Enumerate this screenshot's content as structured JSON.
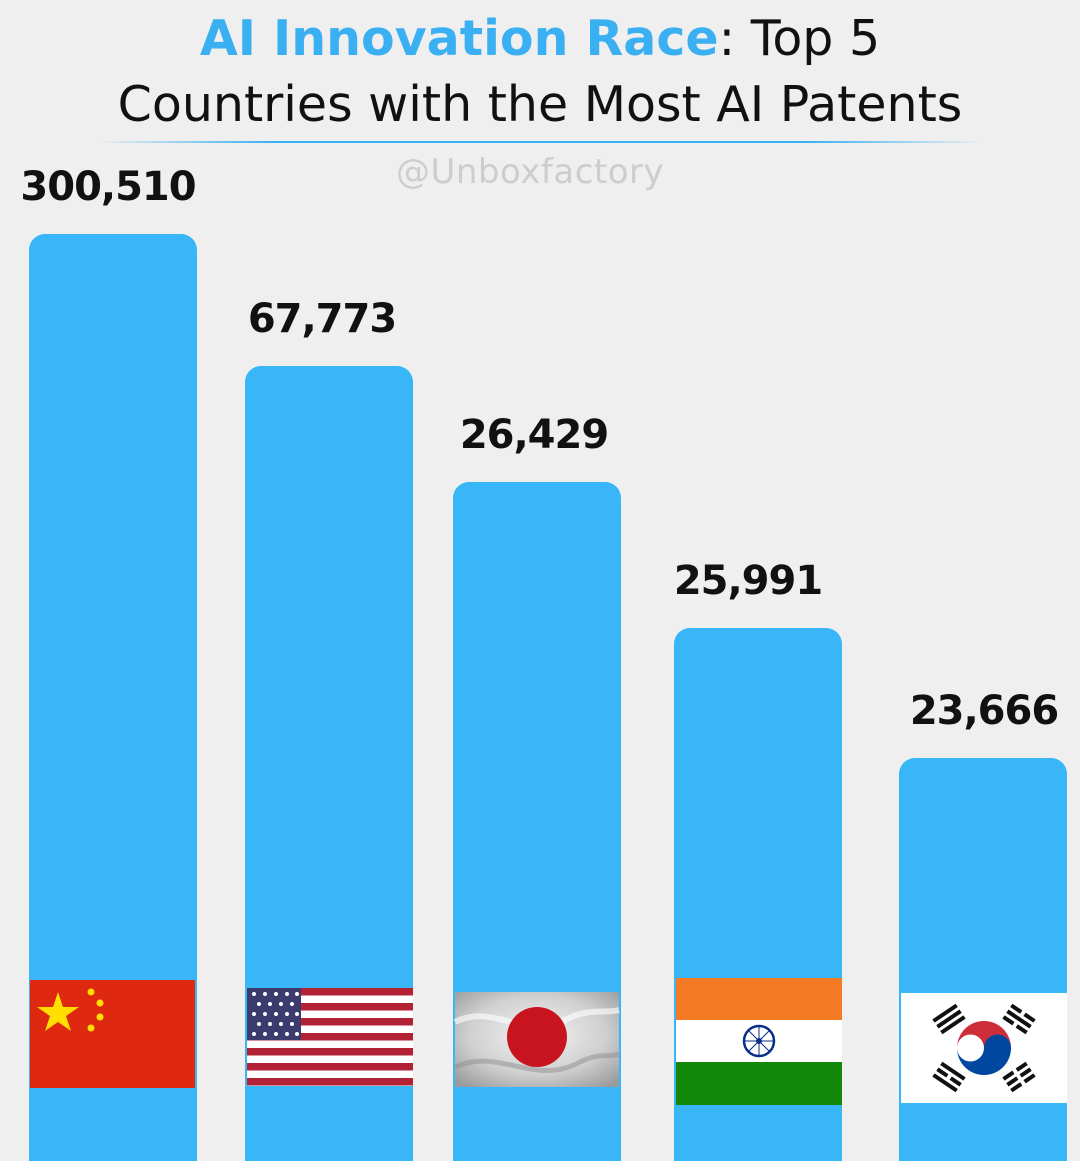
{
  "header": {
    "title_highlight": "AI Innovation Race",
    "title_rest_line1": ": Top 5",
    "title_line2": "Countries with the Most AI Patents",
    "watermark": "@Unboxfactory"
  },
  "colors": {
    "bar": "#38b6f7",
    "highlight": "#3ab0f2",
    "background": "#efefef"
  },
  "chart_data": {
    "type": "bar",
    "title": "AI Innovation Race: Top 5 Countries with the Most AI Patents",
    "categories": [
      "China",
      "United States",
      "Japan",
      "India",
      "South Korea"
    ],
    "values": [
      300510,
      67773,
      26429,
      25991,
      23666
    ],
    "value_labels": [
      "300,510",
      "67,773",
      "26,429",
      "25,991",
      "23,666"
    ],
    "category_icons": [
      "china-flag-icon",
      "usa-flag-icon",
      "japan-flag-icon",
      "india-flag-icon",
      "south-korea-flag-icon"
    ],
    "xlabel": "",
    "ylabel": "",
    "grid": false,
    "legend": "none"
  }
}
